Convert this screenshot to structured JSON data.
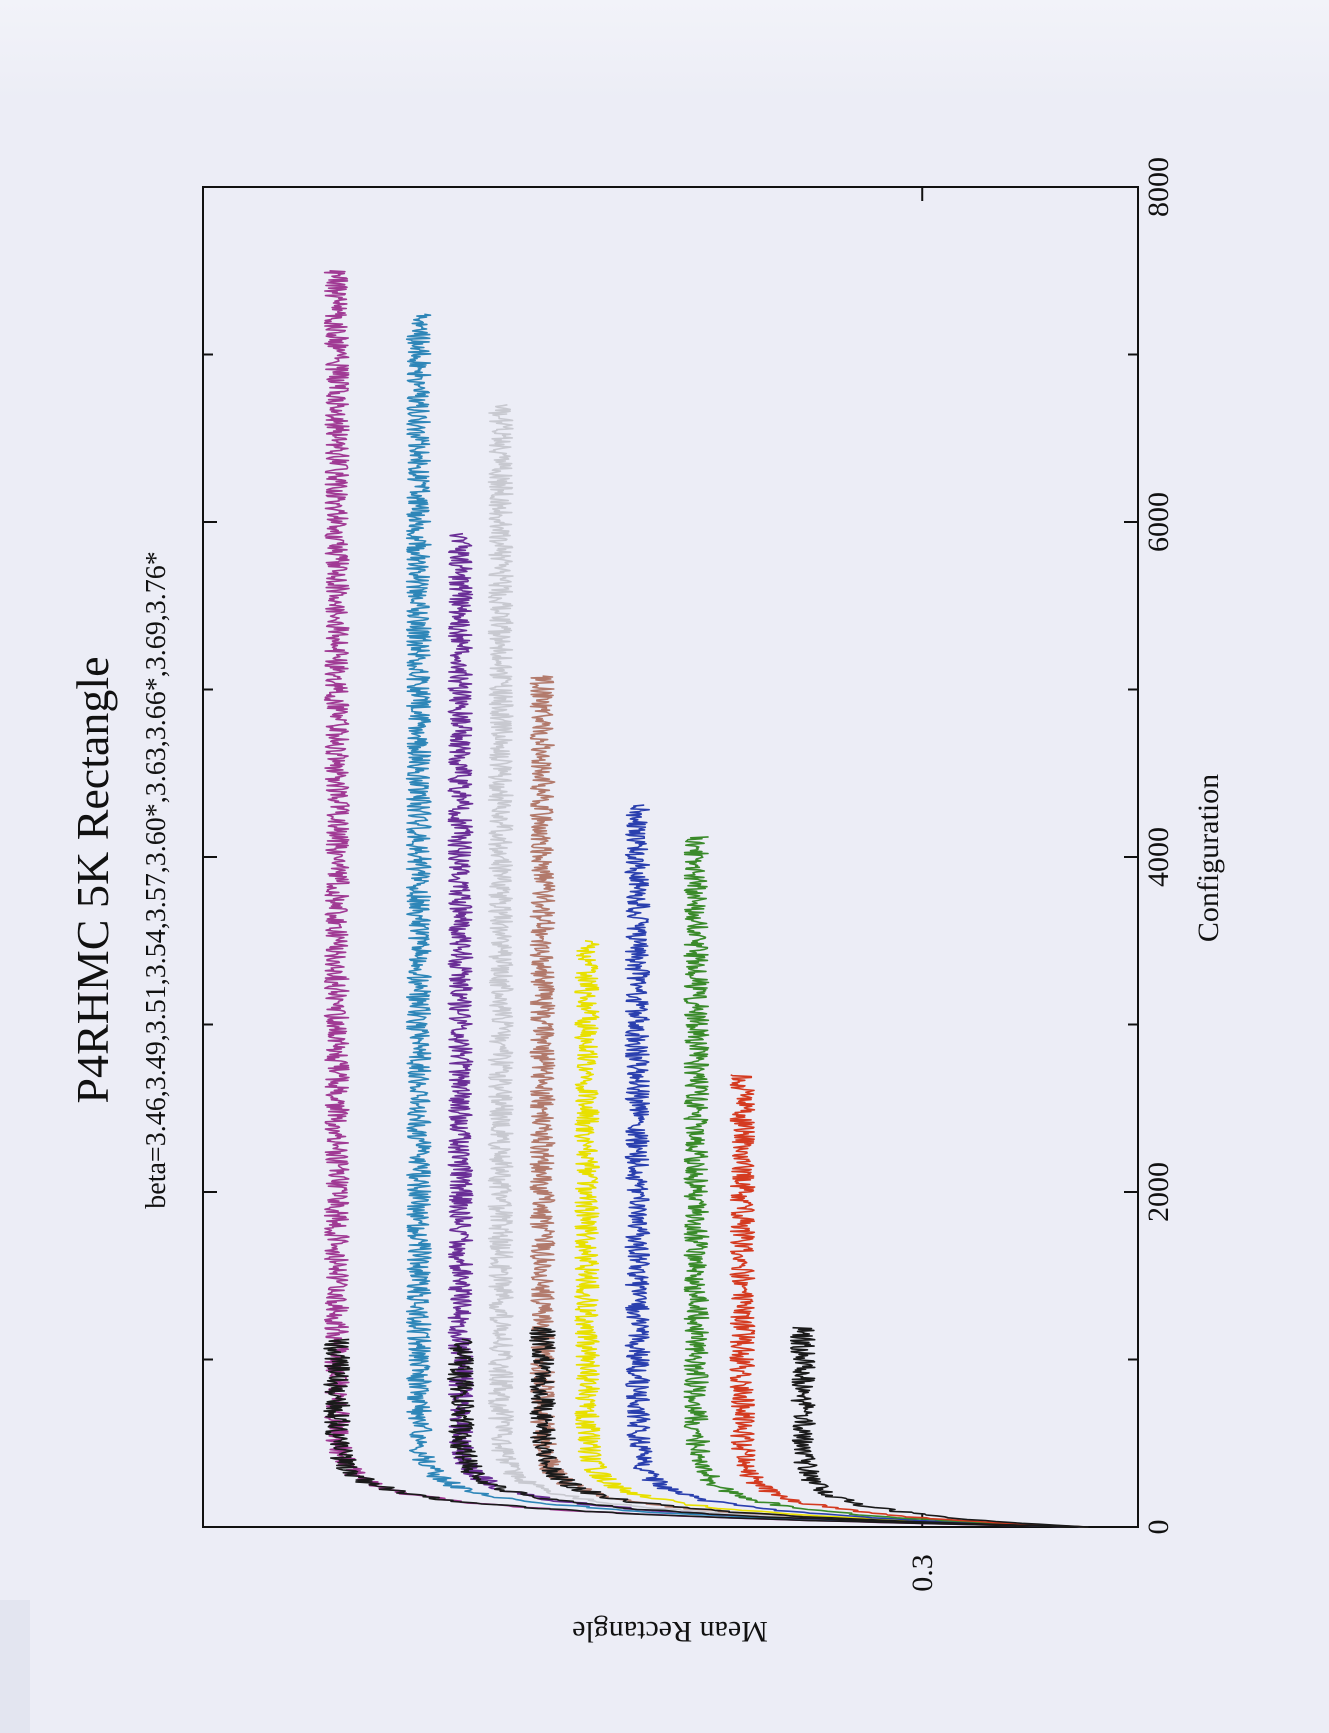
{
  "chart_data": {
    "type": "line",
    "title": "P4RHMC 5K Rectangle",
    "subtitle": "beta=3.46,3.49,3.51,3.54,3.57,3.60*,3.63,3.66*,3.69,3.76*",
    "xlabel": "Configuration",
    "ylabel": "Mean Rectangle",
    "xlim": [
      0,
      8000
    ],
    "x_ticks": [
      "0",
      "2000",
      "4000",
      "6000",
      "8000"
    ],
    "y_ticks": [
      "0.3"
    ],
    "ylim": [
      0.285,
      0.35
    ],
    "grid": false,
    "legend": "none",
    "series": [
      {
        "color": "#a03a94",
        "x_end": 7500,
        "y_level": 0.3407
      },
      {
        "color": "#2e86b8",
        "x_end": 7240,
        "y_level": 0.335
      },
      {
        "color": "#6a2e96",
        "x_end": 5930,
        "y_level": 0.3321
      },
      {
        "color": "#c8c9d0",
        "x_end": 6700,
        "y_level": 0.3293
      },
      {
        "color": "#b27a6c",
        "x_end": 5080,
        "y_level": 0.3264
      },
      {
        "color": "#e8e000",
        "x_end": 3500,
        "y_level": 0.3233
      },
      {
        "color": "#2a3fae",
        "x_end": 4310,
        "y_level": 0.3198
      },
      {
        "color": "#3a8a2a",
        "x_end": 4120,
        "y_level": 0.3157
      },
      {
        "color": "#d43a20",
        "x_end": 2700,
        "y_level": 0.3125
      },
      {
        "color": "#1a1a1a",
        "x_end": 1190,
        "y_level": 0.3083
      }
    ],
    "black_overlays": [
      {
        "x_end": 1120,
        "y_level": 0.3407
      },
      {
        "x_end": 1120,
        "y_level": 0.3321
      },
      {
        "x_end": 1190,
        "y_level": 0.3264
      }
    ]
  }
}
